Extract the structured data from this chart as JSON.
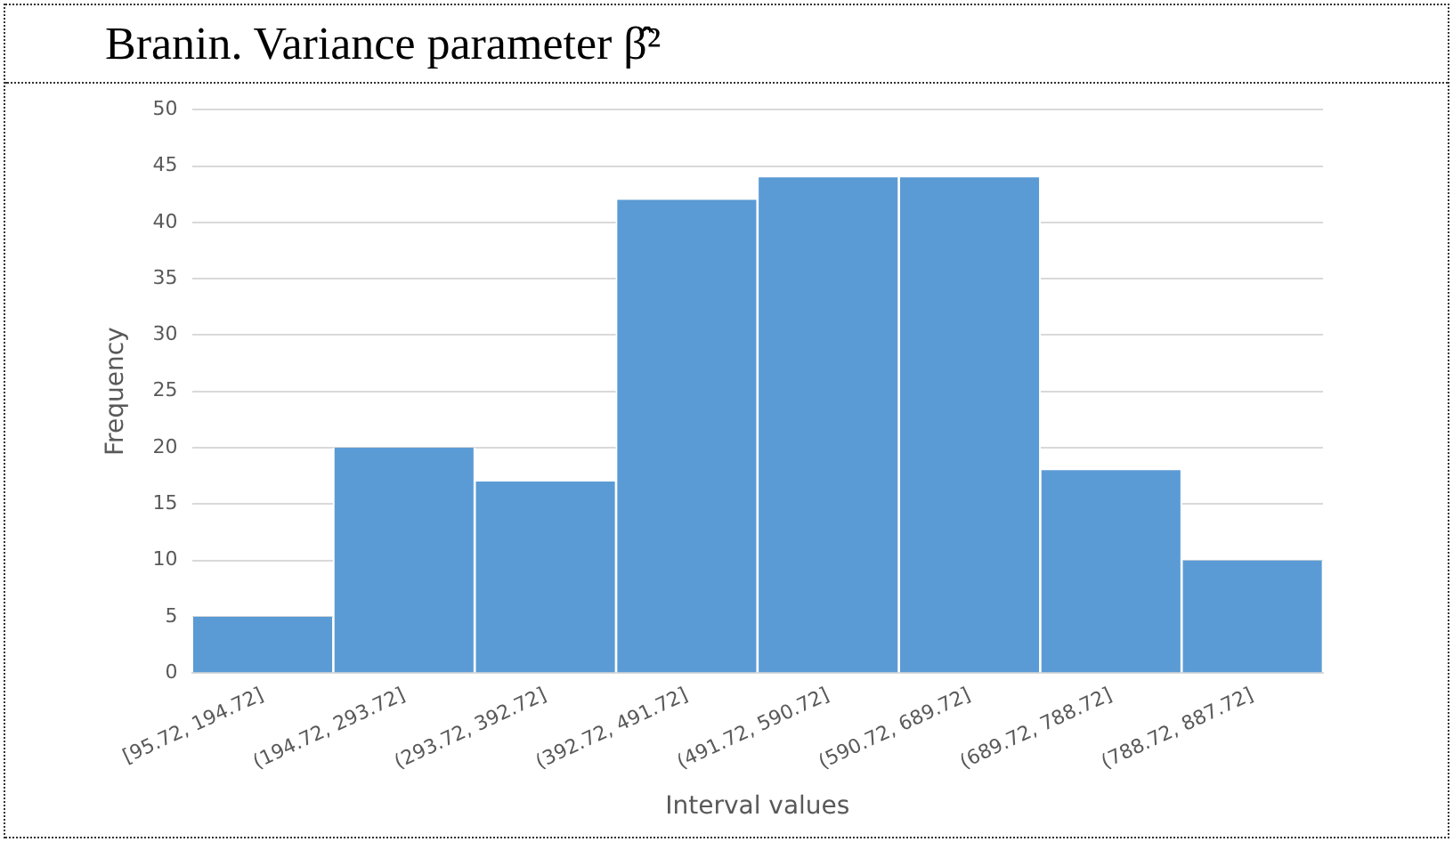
{
  "chart_data": {
    "type": "bar",
    "title": "Branin. Variance parameter β̂²",
    "xlabel": "Interval values",
    "ylabel": "Frequency",
    "categories": [
      "[95.72, 194.72]",
      "(194.72, 293.72]",
      "(293.72, 392.72]",
      "(392.72, 491.72]",
      "(491.72, 590.72]",
      "(590.72, 689.72]",
      "(689.72, 788.72]",
      "(788.72, 887.72]"
    ],
    "values": [
      5,
      20,
      17,
      42,
      44,
      44,
      18,
      10
    ],
    "color": "#5b9bd5",
    "ylim": [
      0,
      50
    ],
    "yticks": [
      0,
      5,
      10,
      15,
      20,
      25,
      30,
      35,
      40,
      45,
      50
    ],
    "grid": "y",
    "legend": false
  }
}
